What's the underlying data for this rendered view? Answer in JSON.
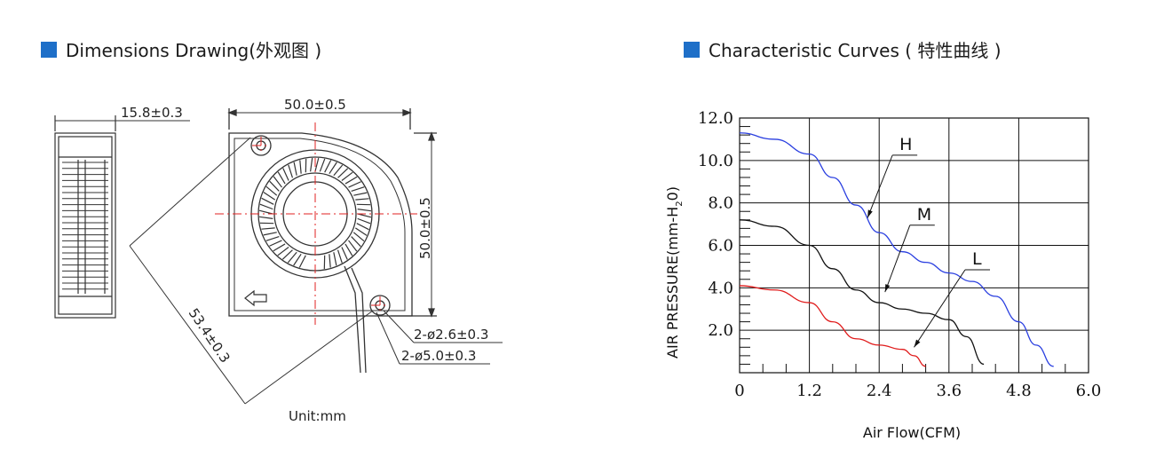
{
  "colors": {
    "title_square": "#1e6fc8",
    "curve_h": "#2a3fe0",
    "curve_m": "#111111",
    "curve_l": "#e01b1b",
    "center_lines": "#e02020"
  },
  "titles": {
    "dimensions": "Dimensions Drawing(外观图 )",
    "characteristic": "Characteristic Curves ( 特性曲线 )"
  },
  "drawing": {
    "side_thickness": "15.8±0.3",
    "width": "50.0±0.5",
    "height": "50.0±0.5",
    "hole_spacing": "53.4±0.3",
    "hole_small": "2-ø2.6±0.3",
    "hole_large": "2-ø5.0±0.3",
    "unit": "Unit:mm"
  },
  "chart_data": {
    "type": "line",
    "xlabel": "Air Flow(CFM)",
    "ylabel": "AIR PRESSURE(mm-H",
    "ylabel_sub": "2",
    "ylabel_end": "0)",
    "xlim": [
      0,
      6.0
    ],
    "ylim": [
      0,
      12.0
    ],
    "x_ticks": [
      "0",
      "1.2",
      "2.4",
      "3.6",
      "4.8",
      "6.0"
    ],
    "y_ticks": [
      "2.0",
      "4.0",
      "6.0",
      "8.0",
      "10.0",
      "12.0"
    ],
    "grid": true,
    "series": [
      {
        "name": "H",
        "x": [
          0,
          0.6,
          1.2,
          1.6,
          2.0,
          2.4,
          2.8,
          3.2,
          3.6,
          4.0,
          4.4,
          4.8,
          5.1,
          5.4
        ],
        "y": [
          11.3,
          11.0,
          10.3,
          9.2,
          7.9,
          6.6,
          5.7,
          5.2,
          4.7,
          4.3,
          3.6,
          2.4,
          1.3,
          0.3
        ]
      },
      {
        "name": "M",
        "x": [
          0,
          0.6,
          1.2,
          1.6,
          2.0,
          2.4,
          2.8,
          3.2,
          3.6,
          3.9,
          4.2
        ],
        "y": [
          7.2,
          6.9,
          6.0,
          4.9,
          3.9,
          3.3,
          3.0,
          2.8,
          2.5,
          1.7,
          0.4
        ]
      },
      {
        "name": "L",
        "x": [
          0,
          0.6,
          1.2,
          1.6,
          2.0,
          2.4,
          2.8,
          3.0,
          3.2
        ],
        "y": [
          4.1,
          3.9,
          3.3,
          2.4,
          1.6,
          1.3,
          1.1,
          0.8,
          0.3
        ]
      }
    ],
    "labels": [
      {
        "text": "H",
        "x": 2.75,
        "y": 10.5,
        "ax": 2.2,
        "ay": 7.3
      },
      {
        "text": "M",
        "x": 3.05,
        "y": 7.2,
        "ax": 2.5,
        "ay": 3.8
      },
      {
        "text": "L",
        "x": 4.0,
        "y": 5.1,
        "ax": 3.0,
        "ay": 1.2
      }
    ]
  }
}
